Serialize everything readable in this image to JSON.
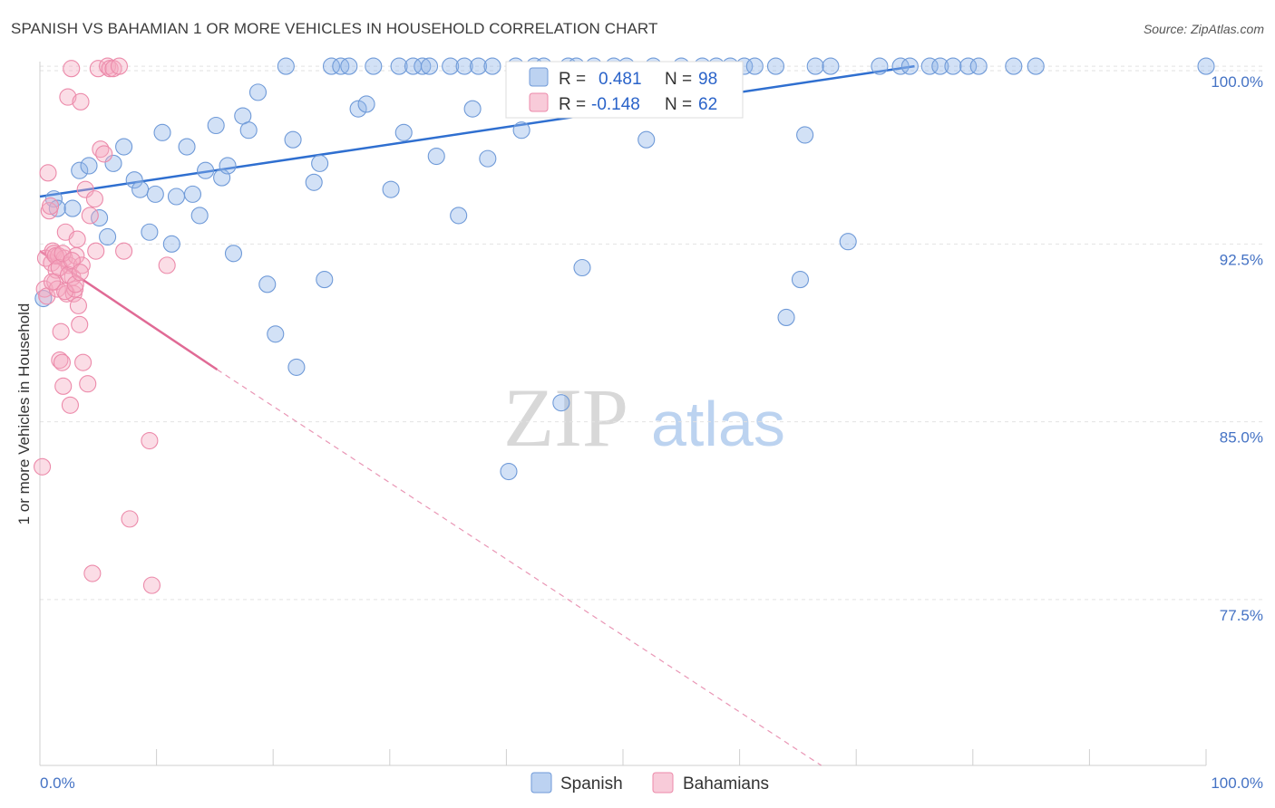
{
  "title": "SPANISH VS BAHAMIAN 1 OR MORE VEHICLES IN HOUSEHOLD CORRELATION CHART",
  "source": "Source: ZipAtlas.com",
  "watermark": {
    "zip": "ZIP",
    "atlas": "atlas"
  },
  "chart_data": {
    "type": "scatter",
    "title": "SPANISH VS BAHAMIAN 1 OR MORE VEHICLES IN HOUSEHOLD CORRELATION CHART",
    "xlabel": "",
    "ylabel": "1 or more Vehicles in Household",
    "xlim": [
      0,
      100
    ],
    "ylim": [
      70.5,
      100.5
    ],
    "x_tick_labels": {
      "left": "0.0%",
      "right": "100.0%"
    },
    "y_ticks": [
      {
        "value": 77.5,
        "label": "77.5%"
      },
      {
        "value": 85.0,
        "label": "85.0%"
      },
      {
        "value": 92.5,
        "label": "92.5%"
      },
      {
        "value": 100.0,
        "label": "100.0%"
      }
    ],
    "legend": {
      "placement": "top-center",
      "entries": [
        {
          "r_label": "R = ",
          "r_value": "0.481",
          "n_label": "N = ",
          "n_value": "98",
          "color": "#8fb4e8"
        },
        {
          "r_label": "R = ",
          "r_value": "-0.148",
          "n_label": "N = ",
          "n_value": "62",
          "color": "#f4a9c0"
        }
      ]
    },
    "series": [
      {
        "name": "Spanish",
        "color": "#8fb4e8",
        "stroke": "#6f9ad8",
        "trend": {
          "x": [
            0,
            75
          ],
          "y": [
            94.5,
            100.0
          ],
          "color": "#2f6fd0"
        },
        "points": [
          [
            0.3,
            90.2
          ],
          [
            1.2,
            94.4
          ],
          [
            1.5,
            94.0
          ],
          [
            2.8,
            94.0
          ],
          [
            3.4,
            95.6
          ],
          [
            4.2,
            95.8
          ],
          [
            5.1,
            93.6
          ],
          [
            5.8,
            92.8
          ],
          [
            6.3,
            95.9
          ],
          [
            7.2,
            96.6
          ],
          [
            8.1,
            95.2
          ],
          [
            8.6,
            94.8
          ],
          [
            9.4,
            93.0
          ],
          [
            9.9,
            94.6
          ],
          [
            10.5,
            97.2
          ],
          [
            11.3,
            92.5
          ],
          [
            11.7,
            94.5
          ],
          [
            12.6,
            96.6
          ],
          [
            13.1,
            94.6
          ],
          [
            13.7,
            93.7
          ],
          [
            14.2,
            95.6
          ],
          [
            15.1,
            97.5
          ],
          [
            15.6,
            95.3
          ],
          [
            16.1,
            95.8
          ],
          [
            16.6,
            92.1
          ],
          [
            17.4,
            97.9
          ],
          [
            17.9,
            97.3
          ],
          [
            18.7,
            98.9
          ],
          [
            19.5,
            90.8
          ],
          [
            20.2,
            88.7
          ],
          [
            21.1,
            100.0
          ],
          [
            21.7,
            96.9
          ],
          [
            22.0,
            87.3
          ],
          [
            23.5,
            95.1
          ],
          [
            24.0,
            95.9
          ],
          [
            24.4,
            91.0
          ],
          [
            25.0,
            100.0
          ],
          [
            25.8,
            100.0
          ],
          [
            26.5,
            100.0
          ],
          [
            27.3,
            98.2
          ],
          [
            28.0,
            98.4
          ],
          [
            28.6,
            100.0
          ],
          [
            30.1,
            94.8
          ],
          [
            30.8,
            100.0
          ],
          [
            31.2,
            97.2
          ],
          [
            32.0,
            100.0
          ],
          [
            32.8,
            100.0
          ],
          [
            33.4,
            100.0
          ],
          [
            34.0,
            96.2
          ],
          [
            35.2,
            100.0
          ],
          [
            35.9,
            93.7
          ],
          [
            36.4,
            100.0
          ],
          [
            37.1,
            98.2
          ],
          [
            37.6,
            100.0
          ],
          [
            38.4,
            96.1
          ],
          [
            38.8,
            100.0
          ],
          [
            40.2,
            82.9
          ],
          [
            40.8,
            100.0
          ],
          [
            41.3,
            97.3
          ],
          [
            41.8,
            98.9
          ],
          [
            42.4,
            100.0
          ],
          [
            43.2,
            100.0
          ],
          [
            44.0,
            98.5
          ],
          [
            44.7,
            85.8
          ],
          [
            45.3,
            100.0
          ],
          [
            46.0,
            100.0
          ],
          [
            46.5,
            91.5
          ],
          [
            47.5,
            100.0
          ],
          [
            48.0,
            99.8
          ],
          [
            49.2,
            100.0
          ],
          [
            50.3,
            100.0
          ],
          [
            52.0,
            96.9
          ],
          [
            52.6,
            100.0
          ],
          [
            55.0,
            100.0
          ],
          [
            56.2,
            99.4
          ],
          [
            56.8,
            100.0
          ],
          [
            58.0,
            100.0
          ],
          [
            59.2,
            100.0
          ],
          [
            60.4,
            100.0
          ],
          [
            61.3,
            100.0
          ],
          [
            63.1,
            100.0
          ],
          [
            64.0,
            89.4
          ],
          [
            65.2,
            91.0
          ],
          [
            65.6,
            97.1
          ],
          [
            66.5,
            100.0
          ],
          [
            67.8,
            100.0
          ],
          [
            69.3,
            92.6
          ],
          [
            72.0,
            100.0
          ],
          [
            73.8,
            100.0
          ],
          [
            74.6,
            100.0
          ],
          [
            76.3,
            100.0
          ],
          [
            77.2,
            100.0
          ],
          [
            78.3,
            100.0
          ],
          [
            79.6,
            100.0
          ],
          [
            80.5,
            100.0
          ],
          [
            83.5,
            100.0
          ],
          [
            85.4,
            100.0
          ],
          [
            100.0,
            100.0
          ]
        ]
      },
      {
        "name": "Bahamians",
        "color": "#f4a9c0",
        "stroke": "#ec8aaa",
        "trend": {
          "x": [
            0,
            15.2
          ],
          "y": [
            92.2,
            87.2
          ],
          "dash_to": {
            "x": 67.0,
            "y": 70.5
          },
          "color": "#e06a95"
        },
        "points": [
          [
            0.2,
            83.1
          ],
          [
            0.4,
            90.6
          ],
          [
            0.5,
            91.9
          ],
          [
            0.6,
            90.3
          ],
          [
            0.7,
            95.5
          ],
          [
            0.8,
            93.9
          ],
          [
            0.9,
            94.1
          ],
          [
            1.0,
            91.7
          ],
          [
            1.1,
            92.2
          ],
          [
            1.2,
            92.1
          ],
          [
            1.3,
            90.9
          ],
          [
            1.4,
            91.4
          ],
          [
            1.5,
            90.6
          ],
          [
            1.6,
            92.0
          ],
          [
            1.7,
            87.6
          ],
          [
            1.8,
            88.8
          ],
          [
            1.9,
            87.5
          ],
          [
            2.0,
            86.5
          ],
          [
            2.1,
            91.9
          ],
          [
            2.2,
            93.0
          ],
          [
            2.3,
            90.4
          ],
          [
            2.4,
            98.7
          ],
          [
            2.5,
            91.6
          ],
          [
            2.6,
            85.7
          ],
          [
            2.7,
            99.9
          ],
          [
            2.8,
            91.1
          ],
          [
            2.9,
            90.4
          ],
          [
            3.0,
            90.6
          ],
          [
            3.1,
            92.0
          ],
          [
            3.2,
            92.7
          ],
          [
            3.3,
            89.9
          ],
          [
            3.4,
            89.1
          ],
          [
            3.5,
            98.5
          ],
          [
            3.6,
            91.6
          ],
          [
            3.7,
            87.5
          ],
          [
            3.9,
            94.8
          ],
          [
            4.1,
            86.6
          ],
          [
            4.3,
            93.7
          ],
          [
            4.5,
            78.6
          ],
          [
            4.7,
            94.4
          ],
          [
            4.8,
            92.2
          ],
          [
            5.0,
            99.9
          ],
          [
            5.2,
            96.5
          ],
          [
            5.5,
            96.3
          ],
          [
            5.8,
            100.0
          ],
          [
            6.0,
            99.9
          ],
          [
            6.3,
            99.9
          ],
          [
            6.8,
            100.0
          ],
          [
            7.2,
            92.2
          ],
          [
            7.7,
            80.9
          ],
          [
            9.4,
            84.2
          ],
          [
            9.6,
            78.1
          ],
          [
            10.9,
            91.6
          ],
          [
            1.05,
            90.9
          ],
          [
            1.35,
            92.0
          ],
          [
            1.65,
            91.5
          ],
          [
            1.95,
            92.1
          ],
          [
            2.15,
            90.5
          ],
          [
            2.45,
            91.2
          ],
          [
            2.75,
            91.8
          ],
          [
            3.05,
            90.8
          ],
          [
            3.45,
            91.3
          ]
        ]
      }
    ]
  }
}
